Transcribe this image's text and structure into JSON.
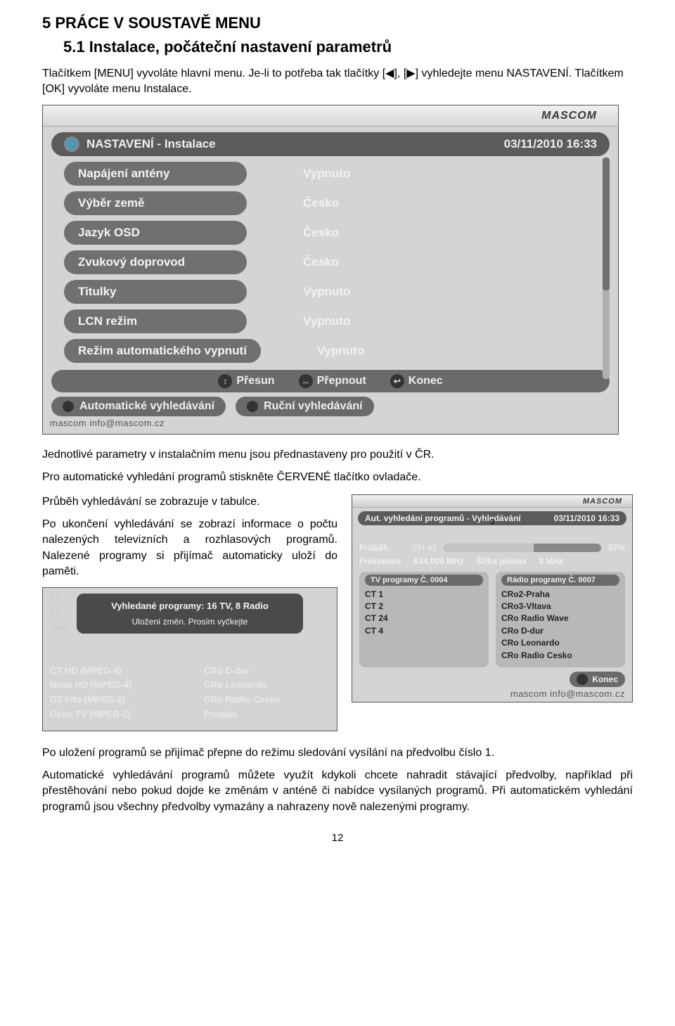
{
  "section_title": "5   PRÁCE V SOUSTAVĚ MENU",
  "subsection_title": "5.1  Instalace, počáteční nastavení parametrů",
  "intro_paras": [
    "Tlačítkem [MENU] vyvoláte hlavní menu. Je-li to potřeba tak tlačítky [◀], [▶] vyhledejte menu NASTAVENÍ. Tlačítkem [OK] vyvoláte menu Instalace."
  ],
  "menu": {
    "logo": "MASCOM",
    "header_title": "NASTAVENÍ - Instalace",
    "header_time": "03/11/2010 16:33",
    "rows": [
      {
        "label": "Napájení antény",
        "value": "Vypnuto"
      },
      {
        "label": "Výběr země",
        "value": "Česko"
      },
      {
        "label": "Jazyk OSD",
        "value": "Česko"
      },
      {
        "label": "Zvukový doprovod",
        "value": "Česko"
      },
      {
        "label": "Titulky",
        "value": "Vypnuto"
      },
      {
        "label": "LCN režim",
        "value": "Vypnuto"
      },
      {
        "label": "Režim automatického vypnutí",
        "value": "Vypnuto"
      }
    ],
    "hints": [
      {
        "icon": "↕",
        "text": "Přesun"
      },
      {
        "icon": "↔",
        "text": "Přepnout"
      },
      {
        "icon": "↩",
        "text": "Konec"
      }
    ],
    "bottom": {
      "auto": "Automatické vyhledávání",
      "manual": "Ruční vyhledávání"
    },
    "watermark": "mascom   info@mascom.cz"
  },
  "mid_paras": [
    "Jednotlivé parametry v instalačním menu jsou přednastaveny pro použití v ČR.",
    "Pro automatické vyhledání programů stiskněte ČERVENÉ tlačítko ovladače.",
    "Průběh vyhledávání se zobrazuje v tabulce."
  ],
  "mid_para_block": "Po ukončení vyhledávání se zobrazí informace o počtu nalezených televizních a rozhlasových programů. Nalezené programy si přijímač automaticky uloží do paměti.",
  "scan": {
    "logo": "MASCOM",
    "header_title": "Aut. vyhledání programů - Vyhledávání",
    "header_time": "03/11/2010 16:33",
    "progress_label": "Průběh",
    "progress_center": "3",
    "progress_channel": "CH 41",
    "progress_pct_text": "57%",
    "progress_fill_pct": 57,
    "freq_label": "Frekvence",
    "freq_val": "634.000 MHz",
    "bw_label": "Šířka pásma",
    "bw_val": "8 MHz",
    "tv_title": "TV programy Č.   0004",
    "radio_title": "Rádio programy Č.   0007",
    "tv_list": [
      "CT 1",
      "CT 2",
      "CT 24",
      "CT 4"
    ],
    "radio_list": [
      "CRo2-Praha",
      "CRo3-Vltava",
      "CRo Radio Wave",
      "CRo D-dur",
      "CRo Leonardo",
      "CRo Radio Cesko"
    ],
    "konec": "Konec",
    "watermark": "mascom   info@mascom.cz"
  },
  "saving": {
    "overlay_l1": "Vyhledané programy: 16 TV,  8 Radio",
    "overlay_l2": "Uložení změn.   Prosím vyčkejte",
    "ghost_tv": "TV",
    "ghost_z1": "Z1",
    "ghost_test": "Test",
    "left_list": [
      "CT HD (MPEG-4)",
      "Nova HD (MPEG-4)",
      "O2 Info (MPEG-2)",
      "Ocko TV (MPEG-2)"
    ],
    "right_list": [
      "CRo D-dur",
      "CRo Leonardo",
      "CRo Radio Cesko",
      "Proglas"
    ]
  },
  "tail_paras": [
    "Po uložení programů se přijímač přepne do režimu sledování vysílání na předvolbu číslo 1.",
    "Automatické vyhledávání programů můžete využít kdykoli chcete nahradit stávající předvolby, například při přestěhování nebo pokud dojde ke změnám v anténě či nabídce vysílaných programů. Při automatickém vyhledání programů jsou všechny předvolby vymazány a nahrazeny nově nalezenými programy."
  ],
  "page_num": "12"
}
